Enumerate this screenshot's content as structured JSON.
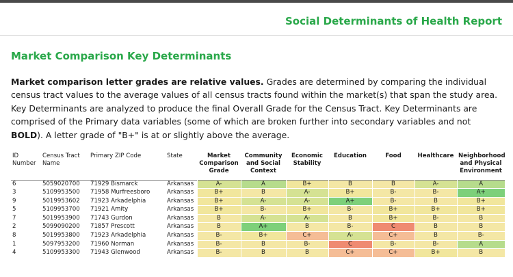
{
  "header": {
    "report_title": "Social Determinants of Health Report"
  },
  "section": {
    "title": "Market Comparison Key Determinants"
  },
  "intro": {
    "bold_lead": "Market comparison letter grades are relative values.",
    "text_1": " Grades are determined by comparing the individual census tract values to the average values of all census tracts found within the market(s) that span the study area. Key Determinants are analyzed to produce the final Overall Grade for the Census Tract. Key Determinants are comprised of the Primary data variables (some of which are broken further into secondary variables and not ",
    "bold_word": "BOLD",
    "text_2": "). A letter grade of \"B+\" is at or slightly above the average."
  },
  "table": {
    "columns": {
      "id": "ID Number",
      "tract": "Census Tract Name",
      "zip": "Primary ZIP Code",
      "state": "State",
      "market": "Market Comparison Grade",
      "community": "Community and Social Context",
      "economic": "Economic Stability",
      "education": "Education",
      "food": "Food",
      "healthcare": "Healthcare",
      "neighborhood": "Neighborhood and Physical Environment"
    },
    "rows": [
      {
        "id": "6",
        "tract": "5059020700",
        "zip": "71929 Bismarck",
        "state": "Arkansas",
        "market": "A-",
        "community": "A",
        "economic": "B+",
        "education": "B",
        "food": "B",
        "healthcare": "A-",
        "neighborhood": "A"
      },
      {
        "id": "3",
        "tract": "5109953500",
        "zip": "71958 Murfreesboro",
        "state": "Arkansas",
        "market": "B+",
        "community": "B",
        "economic": "A-",
        "education": "B+",
        "food": "B-",
        "healthcare": "B-",
        "neighborhood": "A+"
      },
      {
        "id": "9",
        "tract": "5019953602",
        "zip": "71923 Arkadelphia",
        "state": "Arkansas",
        "market": "B+",
        "community": "A-",
        "economic": "A-",
        "education": "A+",
        "food": "B-",
        "healthcare": "B",
        "neighborhood": "B+"
      },
      {
        "id": "5",
        "tract": "5109953700",
        "zip": "71921 Amity",
        "state": "Arkansas",
        "market": "B+",
        "community": "B-",
        "economic": "B+",
        "education": "B-",
        "food": "B+",
        "healthcare": "B+",
        "neighborhood": "B+"
      },
      {
        "id": "7",
        "tract": "5019953900",
        "zip": "71743 Gurdon",
        "state": "Arkansas",
        "market": "B",
        "community": "A-",
        "economic": "A-",
        "education": "B",
        "food": "B+",
        "healthcare": "B-",
        "neighborhood": "B"
      },
      {
        "id": "2",
        "tract": "5099090200",
        "zip": "71857 Prescott",
        "state": "Arkansas",
        "market": "B",
        "community": "A+",
        "economic": "B",
        "education": "B-",
        "food": "C",
        "healthcare": "B",
        "neighborhood": "B"
      },
      {
        "id": "8",
        "tract": "5019953800",
        "zip": "71923 Arkadelphia",
        "state": "Arkansas",
        "market": "B-",
        "community": "B+",
        "economic": "C+",
        "education": "A-",
        "food": "C+",
        "healthcare": "B",
        "neighborhood": "B-"
      },
      {
        "id": "1",
        "tract": "5097953200",
        "zip": "71960 Norman",
        "state": "Arkansas",
        "market": "B-",
        "community": "B",
        "economic": "B-",
        "education": "C",
        "food": "B-",
        "healthcare": "B-",
        "neighborhood": "A"
      },
      {
        "id": "4",
        "tract": "5109953300",
        "zip": "71943 Glenwood",
        "state": "Arkansas",
        "market": "B-",
        "community": "B",
        "economic": "B",
        "education": "C+",
        "food": "C+",
        "healthcare": "B+",
        "neighborhood": "B"
      }
    ]
  },
  "grade_colors": {
    "A+": "#7dd07a",
    "A": "#b6dc8c",
    "A-": "#d5e293",
    "B+": "#f1e69c",
    "B": "#f4e7a5",
    "B-": "#f4e7a5",
    "C+": "#f5bd96",
    "C": "#ef8b71"
  }
}
